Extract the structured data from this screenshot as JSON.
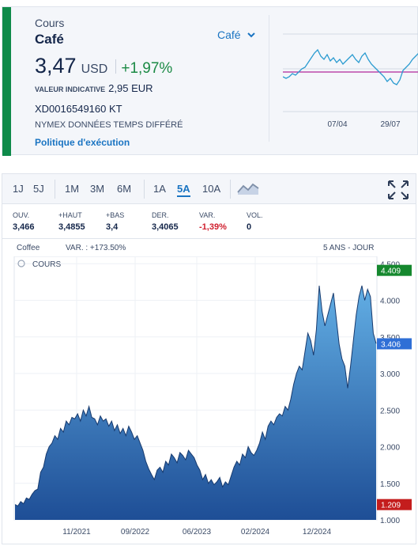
{
  "quote": {
    "label": "Cours",
    "instrument": "Café",
    "selector": "Café",
    "price": "3,47",
    "currency": "USD",
    "change": "+1,97%",
    "indicative_label": "VALEUR INDICATIVE",
    "indicative_value": "2,95 EUR",
    "isin": "XD0016549160 KT",
    "delay_note": "NYMEX DONNÉES TEMPS DIFFÉRÉ",
    "policy_link": "Politique d'exécution",
    "accent_green": "#0f8a4a"
  },
  "mini_chart": {
    "x_labels": [
      "07/04",
      "29/07"
    ]
  },
  "toolbar": {
    "timeframes": [
      "1J",
      "5J",
      "1M",
      "3M",
      "6M",
      "1A",
      "5A",
      "10A"
    ],
    "active": "5A"
  },
  "stats": {
    "open_label": "OUV.",
    "open": "3,466",
    "high_label": "+HAUT",
    "high": "3,4855",
    "low_label": "+BAS",
    "low": "3,4",
    "last_label": "DER.",
    "last": "3,4065",
    "var_label": "VAR.",
    "var": "-1,39%",
    "vol_label": "VOL.",
    "vol": "0"
  },
  "chart_meta": {
    "symbol": "Coffee",
    "variation": "VAR. : +173.50%",
    "period": "5 ANS - JOUR",
    "legend": "COURS"
  },
  "chart_data": {
    "type": "area",
    "title": "",
    "xlabel": "",
    "ylabel": "",
    "x_ticks": [
      "11/2021",
      "09/2022",
      "06/2023",
      "02/2024",
      "12/2024"
    ],
    "y_ticks": [
      "1.000",
      "1.500",
      "2.000",
      "2.500",
      "3.000",
      "3.500",
      "4.000",
      "4.500"
    ],
    "ylim": [
      1.0,
      4.6
    ],
    "grid": true,
    "markers": [
      {
        "label": "4.409",
        "value": 4.409,
        "color": "#15882e"
      },
      {
        "label": "3.406",
        "value": 3.406,
        "color": "#2f6fd6"
      },
      {
        "label": "1.209",
        "value": 1.209,
        "color": "#c41d1d"
      }
    ],
    "series": [
      {
        "values": [
          1.21,
          1.19,
          1.25,
          1.22,
          1.3,
          1.28,
          1.35,
          1.4,
          1.42,
          1.65,
          1.72,
          1.9,
          2.0,
          2.05,
          2.15,
          2.1,
          2.25,
          2.2,
          2.35,
          2.3,
          2.4,
          2.38,
          2.45,
          2.35,
          2.5,
          2.42,
          2.55,
          2.4,
          2.38,
          2.3,
          2.42,
          2.35,
          2.38,
          2.28,
          2.35,
          2.22,
          2.3,
          2.18,
          2.25,
          2.15,
          2.28,
          2.2,
          2.1,
          2.15,
          2.05,
          1.95,
          1.8,
          1.7,
          1.62,
          1.55,
          1.68,
          1.72,
          1.65,
          1.8,
          1.75,
          1.9,
          1.85,
          1.78,
          1.92,
          1.88,
          1.82,
          1.95,
          1.9,
          1.85,
          1.75,
          1.68,
          1.55,
          1.62,
          1.5,
          1.55,
          1.48,
          1.52,
          1.58,
          1.45,
          1.52,
          1.48,
          1.6,
          1.72,
          1.8,
          1.75,
          1.9,
          1.85,
          2.0,
          1.92,
          1.88,
          1.95,
          2.05,
          2.2,
          2.1,
          2.28,
          2.35,
          2.3,
          2.4,
          2.45,
          2.42,
          2.55,
          2.5,
          2.65,
          2.85,
          3.0,
          3.1,
          3.05,
          3.3,
          3.55,
          3.45,
          3.25,
          3.6,
          4.2,
          3.85,
          3.65,
          3.8,
          3.95,
          4.1,
          3.75,
          3.4,
          3.2,
          3.1,
          2.8,
          3.1,
          3.45,
          3.8,
          4.05,
          4.2,
          4.0,
          4.15,
          4.05,
          3.55,
          3.41
        ]
      }
    ]
  }
}
